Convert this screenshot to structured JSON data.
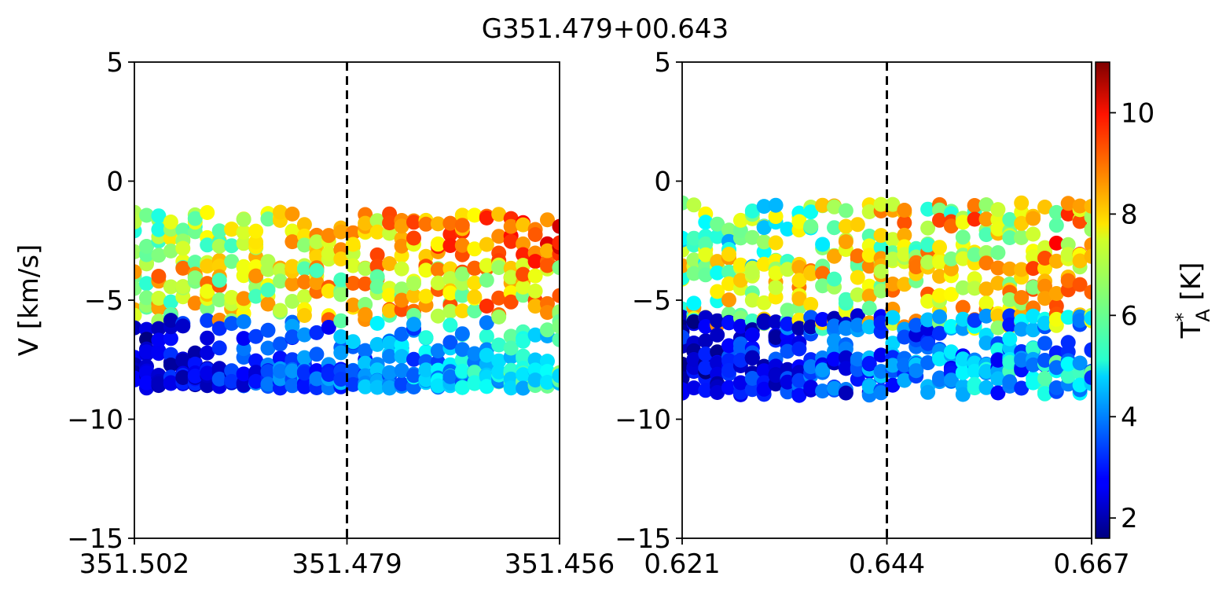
{
  "chart_data": {
    "type": "scatter",
    "title": "G351.479+00.643",
    "colormap": "jet",
    "panels": [
      {
        "name": "longitude-velocity",
        "ylabel": "V [km/s]",
        "xlim": [
          351.502,
          351.456
        ],
        "ylim": [
          -15,
          5
        ],
        "xticks": [
          "351.502",
          "351.479",
          "351.456"
        ],
        "yticks": [
          "5",
          "0",
          "−5",
          "−10",
          "−15"
        ],
        "ytick_values": [
          5,
          0,
          -5,
          -10,
          -15
        ],
        "reference_line_x": 351.479,
        "bands": [
          {
            "v_center": -2.5,
            "v_width": 1.2,
            "t_range": [
              5,
              7.5
            ],
            "t_right": [
              8,
              10.5
            ]
          },
          {
            "v_center": -4.7,
            "v_width": 1.2,
            "t_range": [
              5.5,
              9
            ],
            "t_right": [
              6,
              9.5
            ]
          },
          {
            "v_center": -7.2,
            "v_width": 1.4,
            "t_range": [
              1.5,
              3
            ],
            "t_right": [
              4,
              7
            ]
          },
          {
            "v_center": -8.3,
            "v_width": 0.4,
            "t_range": [
              1.5,
              3
            ],
            "t_right": [
              4.5,
              6.5
            ]
          }
        ]
      },
      {
        "name": "latitude-velocity",
        "ylabel": "",
        "xlim": [
          0.621,
          0.667
        ],
        "ylim": [
          -15,
          5
        ],
        "xticks": [
          "0.621",
          "0.644",
          "0.667"
        ],
        "yticks": [
          "5",
          "0",
          "−5",
          "−10",
          "−15"
        ],
        "ytick_values": [
          5,
          0,
          -5,
          -10,
          -15
        ],
        "reference_line_x": 0.644,
        "bands": [
          {
            "v_center": -2.3,
            "v_width": 1.4,
            "t_range": [
              4,
              7.5
            ],
            "t_right": [
              6,
              10.5
            ]
          },
          {
            "v_center": -4.6,
            "v_width": 1.6,
            "t_range": [
              5,
              8.5
            ],
            "t_right": [
              6.5,
              9.5
            ]
          },
          {
            "v_center": -6.8,
            "v_width": 1.2,
            "t_range": [
              1.5,
              3.5
            ],
            "t_right": [
              3,
              6
            ]
          },
          {
            "v_center": -8.2,
            "v_width": 0.8,
            "t_range": [
              1.5,
              3
            ],
            "t_right": [
              3,
              6.5
            ]
          }
        ]
      }
    ],
    "colorbar": {
      "label_main": "T",
      "label_sup": "*",
      "label_sub": "A",
      "label_unit": " [K]",
      "range": [
        1.6,
        11.0
      ],
      "ticks": [
        "2",
        "4",
        "6",
        "8",
        "10"
      ],
      "tick_values": [
        2,
        4,
        6,
        8,
        10
      ]
    }
  }
}
